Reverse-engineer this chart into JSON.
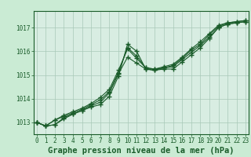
{
  "title": "Graphe pression niveau de la mer (hPa)",
  "background_color": "#caebd4",
  "plot_background": "#d8ede2",
  "grid_color": "#a8c8b8",
  "line_color": "#1a5c2a",
  "x_ticks": [
    0,
    1,
    2,
    3,
    4,
    5,
    6,
    7,
    8,
    9,
    10,
    11,
    12,
    13,
    14,
    15,
    16,
    17,
    18,
    19,
    20,
    21,
    22,
    23
  ],
  "y_ticks": [
    1013,
    1014,
    1015,
    1016,
    1017
  ],
  "ylim": [
    1012.5,
    1017.7
  ],
  "xlim": [
    -0.3,
    23.3
  ],
  "series": [
    [
      1013.0,
      1012.85,
      1012.9,
      1013.15,
      1013.35,
      1013.5,
      1013.65,
      1013.75,
      1014.1,
      1014.95,
      1016.3,
      1016.0,
      1015.25,
      1015.2,
      1015.25,
      1015.25,
      1015.55,
      1015.85,
      1016.15,
      1016.55,
      1017.0,
      1017.15,
      1017.2,
      1017.25
    ],
    [
      1013.0,
      1012.85,
      1012.9,
      1013.2,
      1013.35,
      1013.5,
      1013.7,
      1013.85,
      1014.25,
      1015.05,
      1015.75,
      1015.5,
      1015.25,
      1015.2,
      1015.3,
      1015.35,
      1015.65,
      1015.95,
      1016.25,
      1016.6,
      1017.0,
      1017.15,
      1017.2,
      1017.25
    ],
    [
      1013.0,
      1012.85,
      1013.1,
      1013.25,
      1013.4,
      1013.55,
      1013.75,
      1013.95,
      1014.3,
      1015.1,
      1016.15,
      1015.8,
      1015.3,
      1015.25,
      1015.3,
      1015.4,
      1015.7,
      1016.05,
      1016.3,
      1016.7,
      1017.05,
      1017.2,
      1017.25,
      1017.3
    ],
    [
      1013.0,
      1012.85,
      1013.1,
      1013.3,
      1013.45,
      1013.6,
      1013.8,
      1014.05,
      1014.4,
      1015.2,
      1016.1,
      1015.7,
      1015.3,
      1015.25,
      1015.35,
      1015.45,
      1015.75,
      1016.1,
      1016.4,
      1016.75,
      1017.1,
      1017.2,
      1017.25,
      1017.3
    ]
  ],
  "marker": "+",
  "markersize": 4,
  "linewidth": 0.8,
  "title_fontsize": 7.5,
  "tick_fontsize": 5.5,
  "title_color": "#1a5c2a",
  "tick_color": "#1a5c2a",
  "spine_color": "#1a5c2a"
}
